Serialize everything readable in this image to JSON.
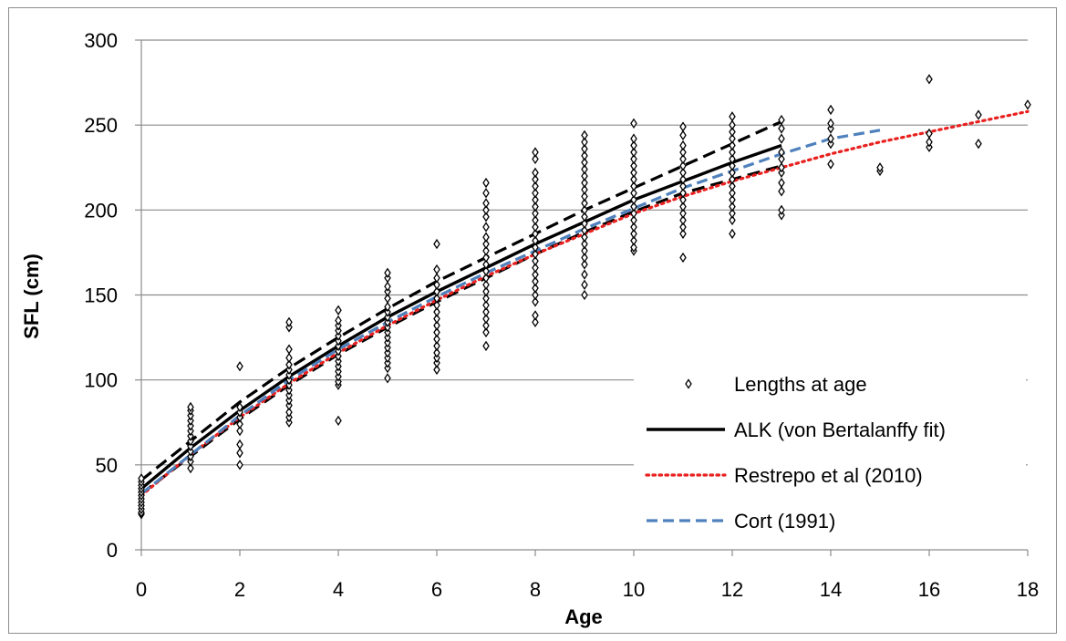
{
  "chart_data": {
    "type": "scatter",
    "xlabel": "Age",
    "ylabel": "SFL (cm)",
    "xlim": [
      0,
      18
    ],
    "ylim": [
      0,
      300
    ],
    "x_ticks": [
      0,
      2,
      4,
      6,
      8,
      10,
      12,
      14,
      16,
      18
    ],
    "y_ticks": [
      0,
      50,
      100,
      150,
      200,
      250,
      300
    ],
    "grid": "horizontal",
    "legend_placement": "bottom-right",
    "series": [
      {
        "name": "Lengths at age",
        "kind": "points",
        "color": "#000000",
        "marker": "diamond-open",
        "points": [
          [
            0,
            21
          ],
          [
            0,
            22
          ],
          [
            0,
            24
          ],
          [
            0,
            26
          ],
          [
            0,
            28
          ],
          [
            0,
            30
          ],
          [
            0,
            32
          ],
          [
            0,
            34
          ],
          [
            0,
            36
          ],
          [
            0,
            38
          ],
          [
            0,
            40
          ],
          [
            0,
            42
          ],
          [
            1,
            48
          ],
          [
            1,
            52
          ],
          [
            1,
            55
          ],
          [
            1,
            58
          ],
          [
            1,
            61
          ],
          [
            1,
            64
          ],
          [
            1,
            67
          ],
          [
            1,
            70
          ],
          [
            1,
            73
          ],
          [
            1,
            76
          ],
          [
            1,
            79
          ],
          [
            1,
            82
          ],
          [
            1,
            84
          ],
          [
            2,
            50
          ],
          [
            2,
            57
          ],
          [
            2,
            62
          ],
          [
            2,
            70
          ],
          [
            2,
            74
          ],
          [
            2,
            78
          ],
          [
            2,
            81
          ],
          [
            2,
            84
          ],
          [
            2,
            108
          ],
          [
            3,
            75
          ],
          [
            3,
            78
          ],
          [
            3,
            81
          ],
          [
            3,
            85
          ],
          [
            3,
            88
          ],
          [
            3,
            91
          ],
          [
            3,
            94
          ],
          [
            3,
            97
          ],
          [
            3,
            100
          ],
          [
            3,
            103
          ],
          [
            3,
            106
          ],
          [
            3,
            109
          ],
          [
            3,
            113
          ],
          [
            3,
            118
          ],
          [
            3,
            131
          ],
          [
            3,
            134
          ],
          [
            4,
            76
          ],
          [
            4,
            97
          ],
          [
            4,
            99
          ],
          [
            4,
            102
          ],
          [
            4,
            105
          ],
          [
            4,
            108
          ],
          [
            4,
            111
          ],
          [
            4,
            114
          ],
          [
            4,
            117
          ],
          [
            4,
            120
          ],
          [
            4,
            123
          ],
          [
            4,
            126
          ],
          [
            4,
            129
          ],
          [
            4,
            132
          ],
          [
            4,
            135
          ],
          [
            4,
            141
          ],
          [
            5,
            101
          ],
          [
            5,
            107
          ],
          [
            5,
            110
          ],
          [
            5,
            113
          ],
          [
            5,
            116
          ],
          [
            5,
            119
          ],
          [
            5,
            122
          ],
          [
            5,
            125
          ],
          [
            5,
            128
          ],
          [
            5,
            131
          ],
          [
            5,
            134
          ],
          [
            5,
            137
          ],
          [
            5,
            140
          ],
          [
            5,
            143
          ],
          [
            5,
            148
          ],
          [
            5,
            152
          ],
          [
            5,
            155
          ],
          [
            5,
            160
          ],
          [
            5,
            163
          ],
          [
            6,
            106
          ],
          [
            6,
            110
          ],
          [
            6,
            113
          ],
          [
            6,
            116
          ],
          [
            6,
            120
          ],
          [
            6,
            124
          ],
          [
            6,
            128
          ],
          [
            6,
            132
          ],
          [
            6,
            136
          ],
          [
            6,
            140
          ],
          [
            6,
            144
          ],
          [
            6,
            148
          ],
          [
            6,
            152
          ],
          [
            6,
            156
          ],
          [
            6,
            160
          ],
          [
            6,
            165
          ],
          [
            6,
            180
          ],
          [
            7,
            120
          ],
          [
            7,
            128
          ],
          [
            7,
            132
          ],
          [
            7,
            136
          ],
          [
            7,
            140
          ],
          [
            7,
            144
          ],
          [
            7,
            148
          ],
          [
            7,
            152
          ],
          [
            7,
            156
          ],
          [
            7,
            160
          ],
          [
            7,
            164
          ],
          [
            7,
            168
          ],
          [
            7,
            172
          ],
          [
            7,
            176
          ],
          [
            7,
            180
          ],
          [
            7,
            184
          ],
          [
            7,
            190
          ],
          [
            7,
            196
          ],
          [
            7,
            200
          ],
          [
            7,
            204
          ],
          [
            7,
            210
          ],
          [
            7,
            216
          ],
          [
            8,
            134
          ],
          [
            8,
            138
          ],
          [
            8,
            146
          ],
          [
            8,
            150
          ],
          [
            8,
            154
          ],
          [
            8,
            158
          ],
          [
            8,
            162
          ],
          [
            8,
            166
          ],
          [
            8,
            170
          ],
          [
            8,
            174
          ],
          [
            8,
            178
          ],
          [
            8,
            182
          ],
          [
            8,
            186
          ],
          [
            8,
            190
          ],
          [
            8,
            194
          ],
          [
            8,
            198
          ],
          [
            8,
            202
          ],
          [
            8,
            206
          ],
          [
            8,
            210
          ],
          [
            8,
            214
          ],
          [
            8,
            218
          ],
          [
            8,
            222
          ],
          [
            8,
            230
          ],
          [
            8,
            234
          ],
          [
            9,
            150
          ],
          [
            9,
            156
          ],
          [
            9,
            162
          ],
          [
            9,
            168
          ],
          [
            9,
            172
          ],
          [
            9,
            176
          ],
          [
            9,
            180
          ],
          [
            9,
            184
          ],
          [
            9,
            188
          ],
          [
            9,
            192
          ],
          [
            9,
            196
          ],
          [
            9,
            200
          ],
          [
            9,
            204
          ],
          [
            9,
            208
          ],
          [
            9,
            212
          ],
          [
            9,
            216
          ],
          [
            9,
            220
          ],
          [
            9,
            224
          ],
          [
            9,
            228
          ],
          [
            9,
            232
          ],
          [
            9,
            236
          ],
          [
            9,
            240
          ],
          [
            9,
            244
          ],
          [
            10,
            176
          ],
          [
            10,
            178
          ],
          [
            10,
            182
          ],
          [
            10,
            186
          ],
          [
            10,
            190
          ],
          [
            10,
            194
          ],
          [
            10,
            198
          ],
          [
            10,
            202
          ],
          [
            10,
            206
          ],
          [
            10,
            210
          ],
          [
            10,
            214
          ],
          [
            10,
            218
          ],
          [
            10,
            222
          ],
          [
            10,
            226
          ],
          [
            10,
            230
          ],
          [
            10,
            234
          ],
          [
            10,
            238
          ],
          [
            10,
            242
          ],
          [
            10,
            251
          ],
          [
            11,
            172
          ],
          [
            11,
            186
          ],
          [
            11,
            190
          ],
          [
            11,
            194
          ],
          [
            11,
            198
          ],
          [
            11,
            202
          ],
          [
            11,
            206
          ],
          [
            11,
            210
          ],
          [
            11,
            214
          ],
          [
            11,
            218
          ],
          [
            11,
            222
          ],
          [
            11,
            226
          ],
          [
            11,
            230
          ],
          [
            11,
            234
          ],
          [
            11,
            238
          ],
          [
            11,
            244
          ],
          [
            11,
            249
          ],
          [
            12,
            186
          ],
          [
            12,
            194
          ],
          [
            12,
            198
          ],
          [
            12,
            202
          ],
          [
            12,
            206
          ],
          [
            12,
            210
          ],
          [
            12,
            214
          ],
          [
            12,
            218
          ],
          [
            12,
            222
          ],
          [
            12,
            226
          ],
          [
            12,
            230
          ],
          [
            12,
            234
          ],
          [
            12,
            238
          ],
          [
            12,
            242
          ],
          [
            12,
            246
          ],
          [
            12,
            250
          ],
          [
            12,
            255
          ],
          [
            13,
            197
          ],
          [
            13,
            200
          ],
          [
            13,
            211
          ],
          [
            13,
            216
          ],
          [
            13,
            222
          ],
          [
            13,
            225
          ],
          [
            13,
            230
          ],
          [
            13,
            234
          ],
          [
            13,
            242
          ],
          [
            13,
            248
          ],
          [
            13,
            253
          ],
          [
            14,
            227
          ],
          [
            14,
            239
          ],
          [
            14,
            242
          ],
          [
            14,
            248
          ],
          [
            14,
            251
          ],
          [
            14,
            259
          ],
          [
            15,
            223
          ],
          [
            15,
            225
          ],
          [
            16,
            237
          ],
          [
            16,
            240
          ],
          [
            16,
            245
          ],
          [
            16,
            277
          ],
          [
            17,
            239
          ],
          [
            17,
            256
          ],
          [
            18,
            262
          ]
        ]
      },
      {
        "name": "ALK (von Bertalanffy fit)",
        "kind": "line",
        "color": "#000000",
        "dash": "solid",
        "points": [
          [
            0,
            36
          ],
          [
            1,
            60
          ],
          [
            2,
            82
          ],
          [
            3,
            102
          ],
          [
            4,
            120
          ],
          [
            5,
            137
          ],
          [
            6,
            152
          ],
          [
            7,
            166
          ],
          [
            8,
            180
          ],
          [
            9,
            193
          ],
          [
            10,
            206
          ],
          [
            11,
            217
          ],
          [
            12,
            228
          ],
          [
            13,
            238
          ]
        ]
      },
      {
        "name": "ALK upper bound",
        "kind": "line",
        "color": "#000000",
        "dash": "long",
        "legend": false,
        "points": [
          [
            0,
            41
          ],
          [
            1,
            64
          ],
          [
            2,
            87
          ],
          [
            3,
            107
          ],
          [
            4,
            125
          ],
          [
            5,
            142
          ],
          [
            6,
            158
          ],
          [
            7,
            172
          ],
          [
            8,
            186
          ],
          [
            9,
            200
          ],
          [
            10,
            213
          ],
          [
            11,
            226
          ],
          [
            12,
            239
          ],
          [
            13,
            252
          ]
        ]
      },
      {
        "name": "ALK lower bound",
        "kind": "line",
        "color": "#000000",
        "dash": "long",
        "legend": false,
        "points": [
          [
            0,
            33
          ],
          [
            1,
            55
          ],
          [
            2,
            77
          ],
          [
            3,
            97
          ],
          [
            4,
            115
          ],
          [
            5,
            131
          ],
          [
            6,
            146
          ],
          [
            7,
            160
          ],
          [
            8,
            174
          ],
          [
            9,
            187
          ],
          [
            10,
            199
          ],
          [
            11,
            210
          ],
          [
            12,
            218
          ],
          [
            13,
            226
          ]
        ]
      },
      {
        "name": "Restrepo et al (2010)",
        "kind": "line",
        "color": "#e8211f",
        "dash": "dotted",
        "points": [
          [
            0,
            32
          ],
          [
            1,
            56
          ],
          [
            2,
            78
          ],
          [
            3,
            98
          ],
          [
            4,
            116
          ],
          [
            5,
            132
          ],
          [
            6,
            147
          ],
          [
            7,
            161
          ],
          [
            8,
            174
          ],
          [
            9,
            186
          ],
          [
            10,
            198
          ],
          [
            11,
            208
          ],
          [
            12,
            217
          ],
          [
            13,
            225
          ],
          [
            14,
            233
          ],
          [
            15,
            240
          ],
          [
            16,
            246
          ],
          [
            17,
            252
          ],
          [
            18,
            258
          ]
        ]
      },
      {
        "name": "Cort (1991)",
        "kind": "line",
        "color": "#4f81bd",
        "dash": "dashed",
        "points": [
          [
            0,
            33
          ],
          [
            1,
            56
          ],
          [
            2,
            79
          ],
          [
            3,
            100
          ],
          [
            4,
            118
          ],
          [
            5,
            134
          ],
          [
            6,
            149
          ],
          [
            7,
            163
          ],
          [
            8,
            176
          ],
          [
            9,
            189
          ],
          [
            10,
            201
          ],
          [
            11,
            213
          ],
          [
            12,
            223
          ],
          [
            13,
            233
          ],
          [
            14,
            242
          ],
          [
            15,
            247
          ]
        ]
      }
    ]
  }
}
